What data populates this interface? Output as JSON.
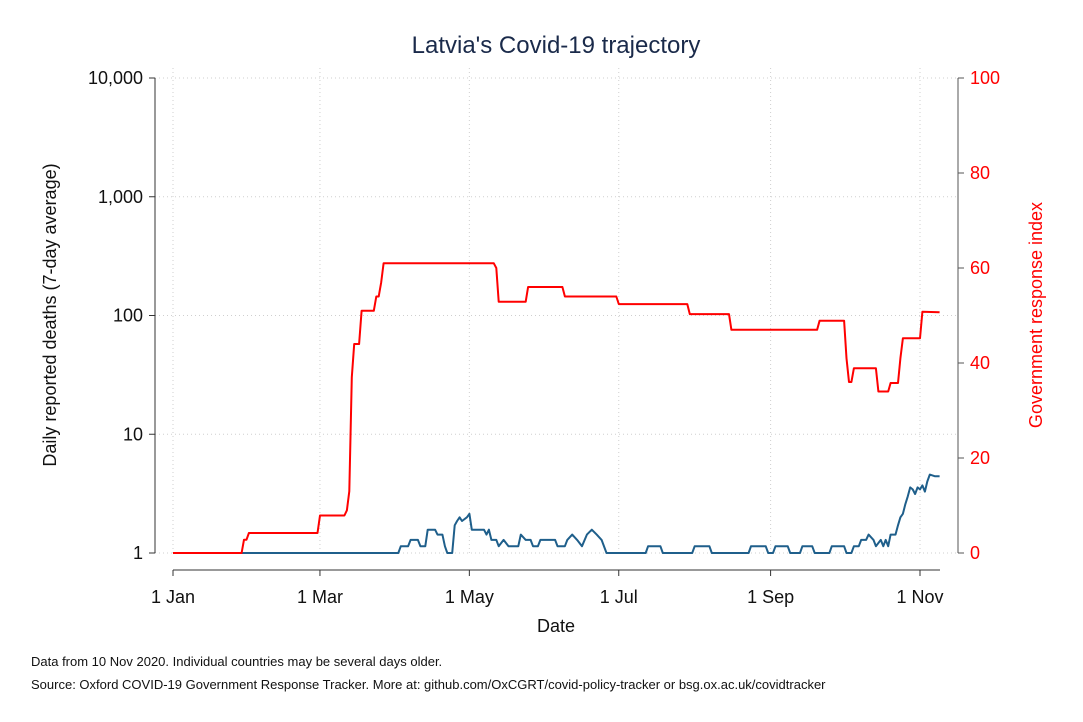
{
  "chart_data": {
    "type": "line",
    "title": "Latvia's Covid-19 trajectory",
    "xlabel": "Date",
    "ylabel_left": "Daily reported deaths (7-day average)",
    "ylabel_right": "Government response index",
    "x_ticks": [
      "1 Jan",
      "1 Mar",
      "1 May",
      "1 Jul",
      "1 Sep",
      "1 Nov"
    ],
    "y_left_ticks": [
      "1",
      "10",
      "100",
      "1,000",
      "10,000"
    ],
    "y_left_scale": "log",
    "y_left_range": [
      1,
      10000
    ],
    "y_right_ticks": [
      "0",
      "20",
      "40",
      "60",
      "80",
      "100"
    ],
    "y_right_range": [
      0,
      100
    ],
    "grid": true,
    "colors": {
      "deaths": "#1f5f8b",
      "index": "#ff0000",
      "right_axis": "#ff0000"
    },
    "series": [
      {
        "axis": "left",
        "points": [
          [
            "2020-01-01",
            1
          ],
          [
            "2020-04-02",
            1
          ],
          [
            "2020-04-03",
            1.14
          ],
          [
            "2020-04-06",
            1.14
          ],
          [
            "2020-04-07",
            1.29
          ],
          [
            "2020-04-10",
            1.29
          ],
          [
            "2020-04-11",
            1.14
          ],
          [
            "2020-04-13",
            1.14
          ],
          [
            "2020-04-14",
            1.57
          ],
          [
            "2020-04-17",
            1.57
          ],
          [
            "2020-04-18",
            1.43
          ],
          [
            "2020-04-20",
            1.43
          ],
          [
            "2020-04-21",
            1.14
          ],
          [
            "2020-04-22",
            1
          ],
          [
            "2020-04-24",
            1
          ],
          [
            "2020-04-25",
            1.71
          ],
          [
            "2020-04-26",
            1.86
          ],
          [
            "2020-04-27",
            2
          ],
          [
            "2020-04-28",
            1.86
          ],
          [
            "2020-04-30",
            2
          ],
          [
            "2020-05-01",
            2.14
          ],
          [
            "2020-05-02",
            1.57
          ],
          [
            "2020-05-07",
            1.57
          ],
          [
            "2020-05-08",
            1.43
          ],
          [
            "2020-05-09",
            1.57
          ],
          [
            "2020-05-10",
            1.29
          ],
          [
            "2020-05-12",
            1.29
          ],
          [
            "2020-05-13",
            1.14
          ],
          [
            "2020-05-15",
            1.29
          ],
          [
            "2020-05-17",
            1.14
          ],
          [
            "2020-05-21",
            1.14
          ],
          [
            "2020-05-22",
            1.43
          ],
          [
            "2020-05-24",
            1.29
          ],
          [
            "2020-05-26",
            1.29
          ],
          [
            "2020-05-27",
            1.14
          ],
          [
            "2020-05-29",
            1.14
          ],
          [
            "2020-05-30",
            1.29
          ],
          [
            "2020-06-05",
            1.29
          ],
          [
            "2020-06-06",
            1.14
          ],
          [
            "2020-06-09",
            1.14
          ],
          [
            "2020-06-10",
            1.29
          ],
          [
            "2020-06-12",
            1.43
          ],
          [
            "2020-06-14",
            1.29
          ],
          [
            "2020-06-16",
            1.14
          ],
          [
            "2020-06-18",
            1.43
          ],
          [
            "2020-06-20",
            1.57
          ],
          [
            "2020-06-22",
            1.43
          ],
          [
            "2020-06-24",
            1.29
          ],
          [
            "2020-06-26",
            1
          ],
          [
            "2020-07-12",
            1
          ],
          [
            "2020-07-13",
            1.14
          ],
          [
            "2020-07-18",
            1.14
          ],
          [
            "2020-07-19",
            1
          ],
          [
            "2020-07-31",
            1
          ],
          [
            "2020-08-01",
            1.14
          ],
          [
            "2020-08-07",
            1.14
          ],
          [
            "2020-08-08",
            1
          ],
          [
            "2020-08-23",
            1
          ],
          [
            "2020-08-24",
            1.14
          ],
          [
            "2020-08-30",
            1.14
          ],
          [
            "2020-08-31",
            1
          ],
          [
            "2020-09-02",
            1
          ],
          [
            "2020-09-03",
            1.14
          ],
          [
            "2020-09-08",
            1.14
          ],
          [
            "2020-09-09",
            1
          ],
          [
            "2020-09-13",
            1
          ],
          [
            "2020-09-14",
            1.14
          ],
          [
            "2020-09-18",
            1.14
          ],
          [
            "2020-09-19",
            1
          ],
          [
            "2020-09-25",
            1
          ],
          [
            "2020-09-26",
            1.14
          ],
          [
            "2020-10-01",
            1.14
          ],
          [
            "2020-10-02",
            1
          ],
          [
            "2020-10-04",
            1
          ],
          [
            "2020-10-05",
            1.14
          ],
          [
            "2020-10-07",
            1.14
          ],
          [
            "2020-10-08",
            1.29
          ],
          [
            "2020-10-10",
            1.29
          ],
          [
            "2020-10-11",
            1.43
          ],
          [
            "2020-10-13",
            1.29
          ],
          [
            "2020-10-14",
            1.14
          ],
          [
            "2020-10-16",
            1.29
          ],
          [
            "2020-10-17",
            1.14
          ],
          [
            "2020-10-18",
            1.29
          ],
          [
            "2020-10-19",
            1.14
          ],
          [
            "2020-10-20",
            1.43
          ],
          [
            "2020-10-22",
            1.43
          ],
          [
            "2020-10-23",
            1.71
          ],
          [
            "2020-10-24",
            2
          ],
          [
            "2020-10-25",
            2.14
          ],
          [
            "2020-10-26",
            2.57
          ],
          [
            "2020-10-27",
            3
          ],
          [
            "2020-10-28",
            3.57
          ],
          [
            "2020-10-29",
            3.43
          ],
          [
            "2020-10-30",
            3.14
          ],
          [
            "2020-10-31",
            3.57
          ],
          [
            "2020-11-01",
            3.43
          ],
          [
            "2020-11-02",
            3.71
          ],
          [
            "2020-11-03",
            3.29
          ],
          [
            "2020-11-04",
            4
          ],
          [
            "2020-11-05",
            4.57
          ],
          [
            "2020-11-07",
            4.43
          ],
          [
            "2020-11-09",
            4.43
          ]
        ]
      },
      {
        "axis": "right",
        "points": [
          [
            "2020-01-01",
            0
          ],
          [
            "2020-01-29",
            0
          ],
          [
            "2020-01-30",
            2.8
          ],
          [
            "2020-01-31",
            2.8
          ],
          [
            "2020-02-01",
            4.2
          ],
          [
            "2020-02-29",
            4.2
          ],
          [
            "2020-03-01",
            7.9
          ],
          [
            "2020-03-11",
            7.9
          ],
          [
            "2020-03-12",
            9
          ],
          [
            "2020-03-13",
            13
          ],
          [
            "2020-03-14",
            37
          ],
          [
            "2020-03-15",
            44
          ],
          [
            "2020-03-17",
            44
          ],
          [
            "2020-03-18",
            51
          ],
          [
            "2020-03-23",
            51
          ],
          [
            "2020-03-24",
            54
          ],
          [
            "2020-03-25",
            54
          ],
          [
            "2020-03-26",
            57
          ],
          [
            "2020-03-27",
            61
          ],
          [
            "2020-05-11",
            61
          ],
          [
            "2020-05-12",
            60
          ],
          [
            "2020-05-13",
            52.9
          ],
          [
            "2020-05-24",
            52.9
          ],
          [
            "2020-05-25",
            56
          ],
          [
            "2020-06-08",
            56
          ],
          [
            "2020-06-09",
            54
          ],
          [
            "2020-06-30",
            54
          ],
          [
            "2020-07-01",
            52.4
          ],
          [
            "2020-07-29",
            52.4
          ],
          [
            "2020-07-30",
            50.3
          ],
          [
            "2020-08-15",
            50.3
          ],
          [
            "2020-08-16",
            47
          ],
          [
            "2020-09-20",
            47
          ],
          [
            "2020-09-21",
            48.9
          ],
          [
            "2020-10-01",
            48.9
          ],
          [
            "2020-10-02",
            41
          ],
          [
            "2020-10-03",
            36
          ],
          [
            "2020-10-04",
            36
          ],
          [
            "2020-10-05",
            38.9
          ],
          [
            "2020-10-14",
            38.9
          ],
          [
            "2020-10-15",
            34
          ],
          [
            "2020-10-19",
            34
          ],
          [
            "2020-10-20",
            35.8
          ],
          [
            "2020-10-23",
            35.8
          ],
          [
            "2020-10-24",
            41
          ],
          [
            "2020-10-25",
            45.2
          ],
          [
            "2020-11-01",
            45.2
          ],
          [
            "2020-11-02",
            50.8
          ],
          [
            "2020-11-09",
            50.7
          ]
        ]
      }
    ]
  },
  "notes": {
    "line1": "Data from 10 Nov 2020. Individual countries may be several days older.",
    "line2": "Source: Oxford COVID-19 Government Response Tracker. More at: github.com/OxCGRT/covid-policy-tracker or bsg.ox.ac.uk/covidtracker"
  }
}
